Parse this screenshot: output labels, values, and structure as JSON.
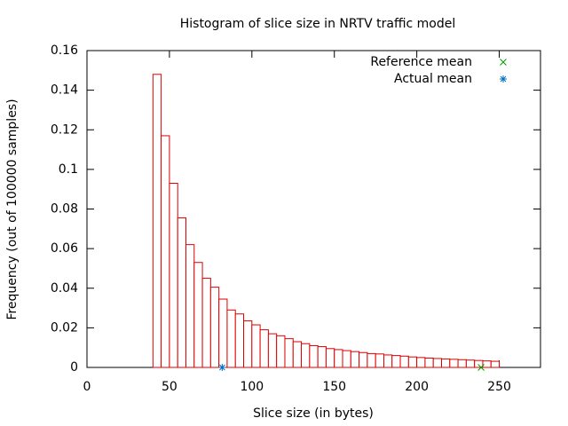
{
  "chart_data": {
    "type": "histogram",
    "title": "Histogram of slice size in NRTV traffic model",
    "x_label": "Slice size (in bytes)",
    "y_label": "Frequency (out of 100000 samples)",
    "bins": [
      40,
      45,
      50,
      55,
      60,
      65,
      70,
      75,
      80,
      85,
      90,
      95,
      100,
      105,
      110,
      115,
      120,
      125,
      130,
      135,
      140,
      145,
      150,
      155,
      160,
      165,
      170,
      175,
      180,
      185,
      190,
      195,
      200,
      205,
      210,
      215,
      220,
      225,
      230,
      235,
      240,
      245,
      250
    ],
    "values": [
      0.148,
      0.117,
      0.093,
      0.0755,
      0.062,
      0.053,
      0.045,
      0.0405,
      0.0345,
      0.029,
      0.027,
      0.0235,
      0.0215,
      0.019,
      0.017,
      0.016,
      0.0145,
      0.013,
      0.012,
      0.011,
      0.0105,
      0.0095,
      0.009,
      0.0085,
      0.008,
      0.0075,
      0.007,
      0.0068,
      0.0063,
      0.006,
      0.0057,
      0.0053,
      0.005,
      0.0047,
      0.0045,
      0.0043,
      0.0041,
      0.0039,
      0.0037,
      0.0035,
      0.0033,
      0.0031
    ],
    "color": "#dd0000",
    "series": [
      {
        "name": "Reference mean",
        "color": "#009900",
        "marker": "x",
        "x": [
          239
        ],
        "values": [
          0
        ]
      },
      {
        "name": "Actual mean",
        "color": "#0070c0",
        "marker": "star",
        "x": [
          82
        ],
        "values": [
          0
        ]
      }
    ],
    "xlim": [
      0,
      275
    ],
    "xticks": [
      0,
      50,
      100,
      150,
      200,
      250
    ],
    "ylim": [
      0,
      0.16
    ],
    "yticks": [
      0,
      0.02,
      0.04,
      0.06,
      0.08,
      0.1,
      0.12,
      0.14,
      0.16
    ],
    "legend": "top-right"
  }
}
